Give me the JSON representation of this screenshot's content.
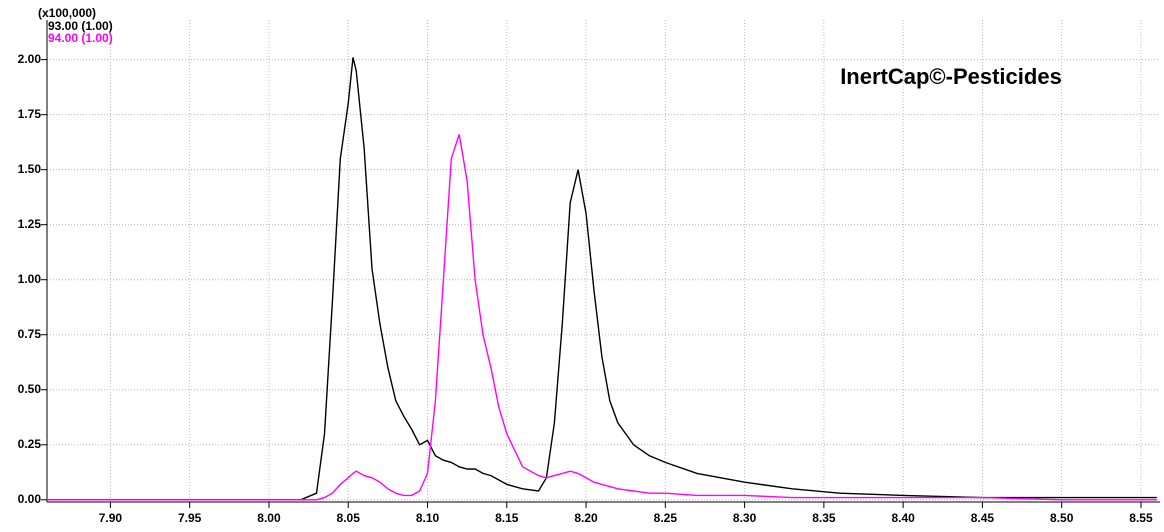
{
  "chart_data": {
    "type": "line",
    "y_label": "(x100,000)",
    "annotation": "InertCap©-Pesticides",
    "x": [
      7.86,
      7.9,
      7.95,
      8.0,
      8.02,
      8.03,
      8.035,
      8.04,
      8.045,
      8.05,
      8.053,
      8.055,
      8.06,
      8.065,
      8.07,
      8.075,
      8.08,
      8.085,
      8.09,
      8.095,
      8.1,
      8.105,
      8.11,
      8.115,
      8.12,
      8.125,
      8.13,
      8.135,
      8.14,
      8.145,
      8.15,
      8.16,
      8.17,
      8.175,
      8.18,
      8.185,
      8.19,
      8.195,
      8.2,
      8.205,
      8.21,
      8.215,
      8.22,
      8.23,
      8.24,
      8.25,
      8.27,
      8.3,
      8.33,
      8.36,
      8.4,
      8.45,
      8.5,
      8.56
    ],
    "series": [
      {
        "name": "93.00 (1.00)",
        "color": "#000000",
        "values": [
          0,
          0,
          0,
          0,
          0,
          0.03,
          0.3,
          0.9,
          1.55,
          1.8,
          2.01,
          1.95,
          1.6,
          1.05,
          0.8,
          0.6,
          0.45,
          0.38,
          0.32,
          0.25,
          0.27,
          0.2,
          0.18,
          0.17,
          0.15,
          0.14,
          0.14,
          0.12,
          0.11,
          0.09,
          0.07,
          0.05,
          0.04,
          0.1,
          0.35,
          0.8,
          1.35,
          1.5,
          1.3,
          0.95,
          0.65,
          0.45,
          0.35,
          0.25,
          0.2,
          0.17,
          0.12,
          0.08,
          0.05,
          0.03,
          0.02,
          0.01,
          0.01,
          0.01
        ]
      },
      {
        "name": "94.00 (1.00)",
        "color": "#ff00ff",
        "values": [
          0,
          0,
          0,
          0,
          0,
          0,
          0.01,
          0.03,
          0.07,
          0.1,
          0.12,
          0.13,
          0.11,
          0.1,
          0.08,
          0.05,
          0.03,
          0.02,
          0.02,
          0.04,
          0.12,
          0.45,
          1.0,
          1.55,
          1.66,
          1.45,
          1.0,
          0.75,
          0.6,
          0.42,
          0.3,
          0.15,
          0.11,
          0.1,
          0.11,
          0.12,
          0.13,
          0.12,
          0.1,
          0.08,
          0.07,
          0.06,
          0.05,
          0.04,
          0.03,
          0.03,
          0.02,
          0.02,
          0.01,
          0.01,
          0.01,
          0.01,
          0,
          0
        ]
      }
    ],
    "xlim": [
      7.86,
      8.562
    ],
    "ylim": [
      -0.01,
      2.18
    ],
    "xticks": [
      {
        "value": 7.9,
        "label": "7.90"
      },
      7.95,
      {
        "value": 8.0,
        "label": "8.00"
      },
      8.05,
      {
        "value": 8.1,
        "label": "8.10"
      },
      8.15,
      {
        "value": 8.2,
        "label": "8.20"
      },
      8.25,
      {
        "value": 8.3,
        "label": "8.30"
      },
      8.35,
      {
        "value": 8.4,
        "label": "8.40"
      },
      8.45,
      {
        "value": 8.5,
        "label": "8.50"
      },
      8.55
    ],
    "yticks": [
      {
        "value": 0,
        "label": "0.00"
      },
      {
        "value": 0.25,
        "label": "0.25"
      },
      {
        "value": 0.5,
        "label": "0.50"
      },
      {
        "value": 0.75,
        "label": "0.75"
      },
      {
        "value": 1,
        "label": "1.00"
      },
      {
        "value": 1.25,
        "label": "1.25"
      },
      {
        "value": 1.5,
        "label": "1.50"
      },
      {
        "value": 1.75,
        "label": "1.75"
      },
      {
        "value": 2,
        "label": "2.00"
      }
    ],
    "grid": true
  }
}
